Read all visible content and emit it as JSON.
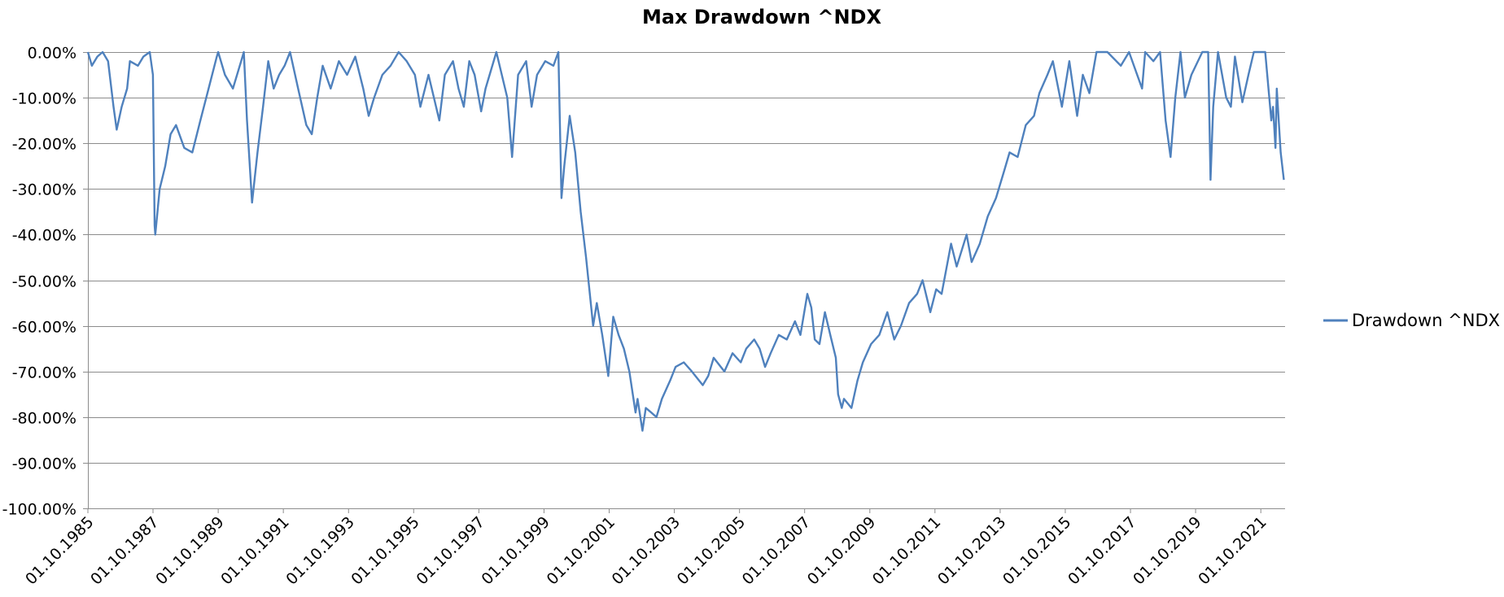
{
  "chart_data": {
    "type": "line",
    "title": "Max Drawdown ^NDX",
    "xlabel": "",
    "ylabel": "",
    "ylim": [
      -100,
      0
    ],
    "yticks": [
      0,
      -10,
      -20,
      -30,
      -40,
      -50,
      -60,
      -70,
      -80,
      -90,
      -100
    ],
    "ytick_labels": [
      "0.00%",
      "-10.00%",
      "-20.00%",
      "-30.00%",
      "-40.00%",
      "-50.00%",
      "-60.00%",
      "-70.00%",
      "-80.00%",
      "-90.00%",
      "-100.00%"
    ],
    "xlim": [
      "1985-10-01",
      "2022-06-30"
    ],
    "xtick_labels": [
      "01.10.1985",
      "01.10.1987",
      "01.10.1989",
      "01.10.1991",
      "01.10.1993",
      "01.10.1995",
      "01.10.1997",
      "01.10.1999",
      "01.10.2001",
      "01.10.2003",
      "01.10.2005",
      "01.10.2007",
      "01.10.2009",
      "01.10.2011",
      "01.10.2013",
      "01.10.2015",
      "01.10.2017",
      "01.10.2019",
      "01.10.2021"
    ],
    "grid": true,
    "legend_position": "right",
    "series": [
      {
        "name": "Drawdown ^NDX",
        "color": "#4f81bd",
        "points": [
          [
            "1985-10-01",
            0
          ],
          [
            "1985-11-15",
            -3
          ],
          [
            "1986-01-15",
            -1
          ],
          [
            "1986-03-15",
            0
          ],
          [
            "1986-05-15",
            -2
          ],
          [
            "1986-07-15",
            -12
          ],
          [
            "1986-08-20",
            -17
          ],
          [
            "1986-10-15",
            -12
          ],
          [
            "1986-12-15",
            -8
          ],
          [
            "1987-01-15",
            -2
          ],
          [
            "1987-04-15",
            -3
          ],
          [
            "1987-06-15",
            -1
          ],
          [
            "1987-08-25",
            0
          ],
          [
            "1987-09-30",
            -5
          ],
          [
            "1987-10-19",
            -38
          ],
          [
            "1987-10-26",
            -40
          ],
          [
            "1987-12-15",
            -30
          ],
          [
            "1988-02-15",
            -25
          ],
          [
            "1988-04-15",
            -18
          ],
          [
            "1988-06-15",
            -16
          ],
          [
            "1988-09-15",
            -21
          ],
          [
            "1988-12-15",
            -22
          ],
          [
            "1989-03-15",
            -15
          ],
          [
            "1989-06-15",
            -8
          ],
          [
            "1989-09-15",
            -1
          ],
          [
            "1989-10-01",
            0
          ],
          [
            "1989-12-15",
            -5
          ],
          [
            "1990-03-15",
            -8
          ],
          [
            "1990-06-15",
            -2
          ],
          [
            "1990-07-15",
            0
          ],
          [
            "1990-08-20",
            -15
          ],
          [
            "1990-10-15",
            -33
          ],
          [
            "1990-12-15",
            -22
          ],
          [
            "1991-02-15",
            -12
          ],
          [
            "1991-04-15",
            -2
          ],
          [
            "1991-06-15",
            -8
          ],
          [
            "1991-08-15",
            -5
          ],
          [
            "1991-10-15",
            -3
          ],
          [
            "1991-12-15",
            0
          ],
          [
            "1992-03-15",
            -8
          ],
          [
            "1992-06-15",
            -16
          ],
          [
            "1992-08-15",
            -18
          ],
          [
            "1992-10-15",
            -10
          ],
          [
            "1992-12-15",
            -3
          ],
          [
            "1993-03-15",
            -8
          ],
          [
            "1993-06-15",
            -2
          ],
          [
            "1993-09-15",
            -5
          ],
          [
            "1993-12-15",
            -1
          ],
          [
            "1994-03-15",
            -8
          ],
          [
            "1994-05-15",
            -14
          ],
          [
            "1994-07-15",
            -10
          ],
          [
            "1994-10-15",
            -5
          ],
          [
            "1995-01-15",
            -3
          ],
          [
            "1995-04-15",
            0
          ],
          [
            "1995-07-15",
            -2
          ],
          [
            "1995-10-15",
            -5
          ],
          [
            "1995-12-15",
            -12
          ],
          [
            "1996-03-15",
            -5
          ],
          [
            "1996-07-15",
            -15
          ],
          [
            "1996-09-15",
            -5
          ],
          [
            "1996-12-15",
            -2
          ],
          [
            "1997-02-15",
            -8
          ],
          [
            "1997-04-15",
            -12
          ],
          [
            "1997-06-15",
            -2
          ],
          [
            "1997-08-15",
            -5
          ],
          [
            "1997-10-27",
            -13
          ],
          [
            "1997-12-15",
            -8
          ],
          [
            "1998-04-15",
            0
          ],
          [
            "1998-08-15",
            -10
          ],
          [
            "1998-10-08",
            -23
          ],
          [
            "1998-12-15",
            -5
          ],
          [
            "1999-03-15",
            -2
          ],
          [
            "1999-05-15",
            -12
          ],
          [
            "1999-07-15",
            -5
          ],
          [
            "1999-10-15",
            -2
          ],
          [
            "2000-01-15",
            -3
          ],
          [
            "2000-03-10",
            0
          ],
          [
            "2000-04-14",
            -32
          ],
          [
            "2000-05-15",
            -25
          ],
          [
            "2000-07-15",
            -14
          ],
          [
            "2000-09-15",
            -22
          ],
          [
            "2000-11-15",
            -35
          ],
          [
            "2001-01-15",
            -45
          ],
          [
            "2001-04-04",
            -60
          ],
          [
            "2001-05-15",
            -55
          ],
          [
            "2001-07-15",
            -62
          ],
          [
            "2001-09-21",
            -71
          ],
          [
            "2001-11-15",
            -58
          ],
          [
            "2002-01-15",
            -62
          ],
          [
            "2002-03-15",
            -65
          ],
          [
            "2002-05-15",
            -70
          ],
          [
            "2002-07-23",
            -79
          ],
          [
            "2002-08-15",
            -76
          ],
          [
            "2002-10-09",
            -83
          ],
          [
            "2002-11-15",
            -78
          ],
          [
            "2003-01-15",
            -79
          ],
          [
            "2003-03-15",
            -80
          ],
          [
            "2003-05-15",
            -76
          ],
          [
            "2003-08-15",
            -72
          ],
          [
            "2003-10-15",
            -69
          ],
          [
            "2004-01-15",
            -68
          ],
          [
            "2004-04-15",
            -70
          ],
          [
            "2004-08-15",
            -73
          ],
          [
            "2004-10-15",
            -71
          ],
          [
            "2004-12-15",
            -67
          ],
          [
            "2005-04-15",
            -70
          ],
          [
            "2005-07-15",
            -66
          ],
          [
            "2005-10-15",
            -68
          ],
          [
            "2005-12-15",
            -65
          ],
          [
            "2006-03-15",
            -63
          ],
          [
            "2006-05-15",
            -65
          ],
          [
            "2006-07-15",
            -69
          ],
          [
            "2006-09-15",
            -66
          ],
          [
            "2006-12-15",
            -62
          ],
          [
            "2007-03-15",
            -63
          ],
          [
            "2007-06-15",
            -59
          ],
          [
            "2007-08-15",
            -62
          ],
          [
            "2007-10-31",
            -53
          ],
          [
            "2007-12-15",
            -56
          ],
          [
            "2008-01-22",
            -63
          ],
          [
            "2008-03-15",
            -64
          ],
          [
            "2008-05-15",
            -57
          ],
          [
            "2008-07-15",
            -62
          ],
          [
            "2008-09-15",
            -67
          ],
          [
            "2008-10-10",
            -75
          ],
          [
            "2008-11-20",
            -78
          ],
          [
            "2008-12-15",
            -76
          ],
          [
            "2009-03-09",
            -78
          ],
          [
            "2009-05-15",
            -72
          ],
          [
            "2009-07-15",
            -68
          ],
          [
            "2009-10-15",
            -64
          ],
          [
            "2010-01-15",
            -62
          ],
          [
            "2010-04-15",
            -57
          ],
          [
            "2010-07-02",
            -63
          ],
          [
            "2010-09-15",
            -60
          ],
          [
            "2010-12-15",
            -55
          ],
          [
            "2011-03-15",
            -53
          ],
          [
            "2011-05-15",
            -50
          ],
          [
            "2011-08-10",
            -57
          ],
          [
            "2011-10-15",
            -52
          ],
          [
            "2011-12-15",
            -53
          ],
          [
            "2012-03-30",
            -42
          ],
          [
            "2012-06-01",
            -47
          ],
          [
            "2012-09-20",
            -40
          ],
          [
            "2012-11-15",
            -46
          ],
          [
            "2013-02-15",
            -42
          ],
          [
            "2013-05-15",
            -36
          ],
          [
            "2013-08-15",
            -32
          ],
          [
            "2013-11-15",
            -26
          ],
          [
            "2014-01-15",
            -22
          ],
          [
            "2014-04-15",
            -23
          ],
          [
            "2014-07-15",
            -16
          ],
          [
            "2014-10-15",
            -14
          ],
          [
            "2014-12-15",
            -9
          ],
          [
            "2015-03-15",
            -5
          ],
          [
            "2015-05-15",
            -2
          ],
          [
            "2015-08-24",
            -12
          ],
          [
            "2015-11-15",
            -2
          ],
          [
            "2016-02-11",
            -14
          ],
          [
            "2016-04-15",
            -5
          ],
          [
            "2016-06-27",
            -9
          ],
          [
            "2016-09-15",
            0
          ],
          [
            "2017-01-15",
            0
          ],
          [
            "2017-06-15",
            -3
          ],
          [
            "2017-09-15",
            0
          ],
          [
            "2018-02-08",
            -8
          ],
          [
            "2018-03-15",
            0
          ],
          [
            "2018-06-15",
            -2
          ],
          [
            "2018-08-29",
            0
          ],
          [
            "2018-10-30",
            -15
          ],
          [
            "2018-12-24",
            -23
          ],
          [
            "2019-02-15",
            -10
          ],
          [
            "2019-04-15",
            0
          ],
          [
            "2019-06-03",
            -10
          ],
          [
            "2019-08-15",
            -5
          ],
          [
            "2019-12-15",
            0
          ],
          [
            "2020-02-19",
            0
          ],
          [
            "2020-03-16",
            -28
          ],
          [
            "2020-04-15",
            -12
          ],
          [
            "2020-06-08",
            0
          ],
          [
            "2020-09-08",
            -10
          ],
          [
            "2020-10-30",
            -12
          ],
          [
            "2020-12-15",
            -1
          ],
          [
            "2021-03-08",
            -11
          ],
          [
            "2021-05-15",
            -5
          ],
          [
            "2021-07-15",
            0
          ],
          [
            "2021-11-19",
            0
          ],
          [
            "2022-01-27",
            -15
          ],
          [
            "2022-02-15",
            -12
          ],
          [
            "2022-03-14",
            -21
          ],
          [
            "2022-03-29",
            -8
          ],
          [
            "2022-05-12",
            -22
          ],
          [
            "2022-06-16",
            -28
          ]
        ]
      }
    ]
  }
}
